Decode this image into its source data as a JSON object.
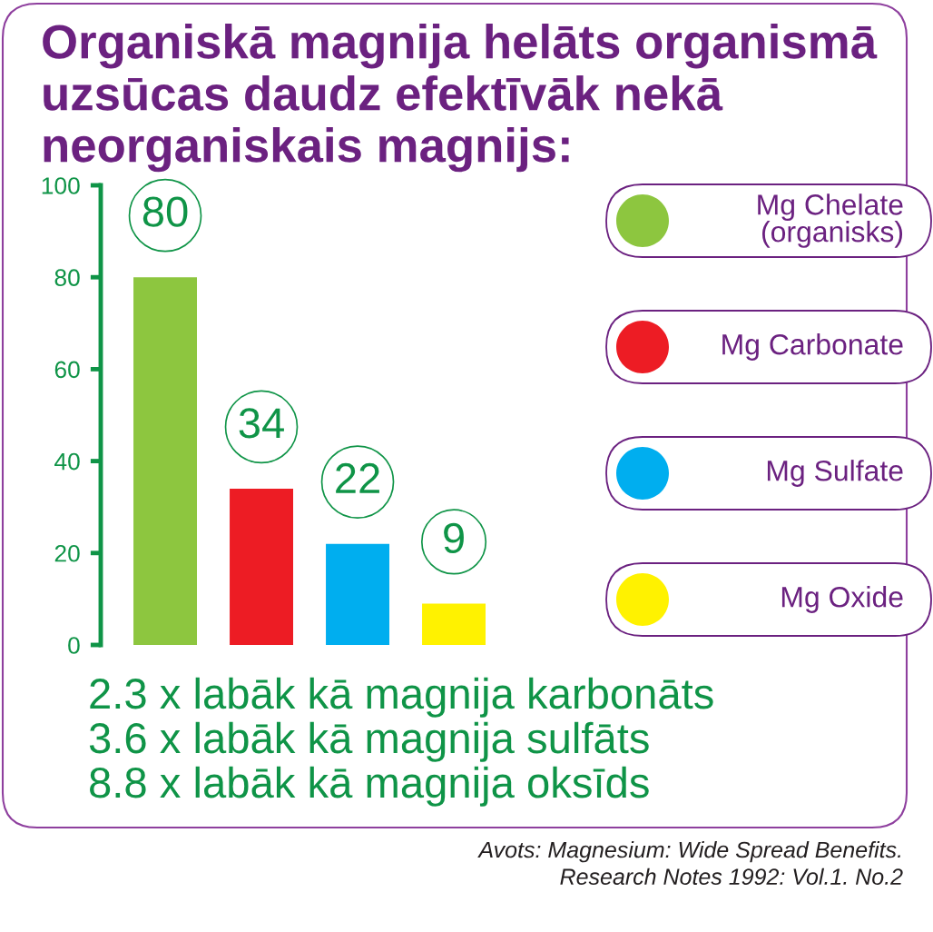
{
  "chart_data": {
    "type": "bar",
    "title": "Organiskā magnija helāts organismā uzsūcas daudz efektīvāk nekā neorganiskais magnijs:",
    "categories": [
      null,
      null,
      null,
      null
    ],
    "stacked": true,
    "series": [
      {
        "name": "Mg Chelate\n(organisks)",
        "color": "#8dc63f",
        "values": [
          80,
          null,
          null,
          null
        ]
      },
      {
        "name": "Mg Carbonate",
        "color": "#ed1c24",
        "values": [
          null,
          34,
          null,
          null
        ]
      },
      {
        "name": "Mg Sulfate",
        "color": "#00aeef",
        "values": [
          null,
          null,
          22,
          null
        ]
      },
      {
        "name": "Mg Oxide",
        "color": "#fff200",
        "values": [
          null,
          null,
          null,
          9
        ]
      }
    ],
    "ylim": [
      0,
      100
    ],
    "yticks": [
      0,
      20,
      40,
      60,
      80,
      100
    ],
    "grid": false,
    "data_labels": true,
    "legend": "right",
    "tick_labels": "y",
    "annotations": [
      "2.3 x labāk kā magnija karbonāts",
      "3.6 x labāk kā magnija sulfāts",
      "8.8 x labāk kā magnija oksīds",
      "Avots: Magnesium: Wide Spread Benefits.\nResearch Notes 1992: Vol.1. No.2"
    ]
  }
}
